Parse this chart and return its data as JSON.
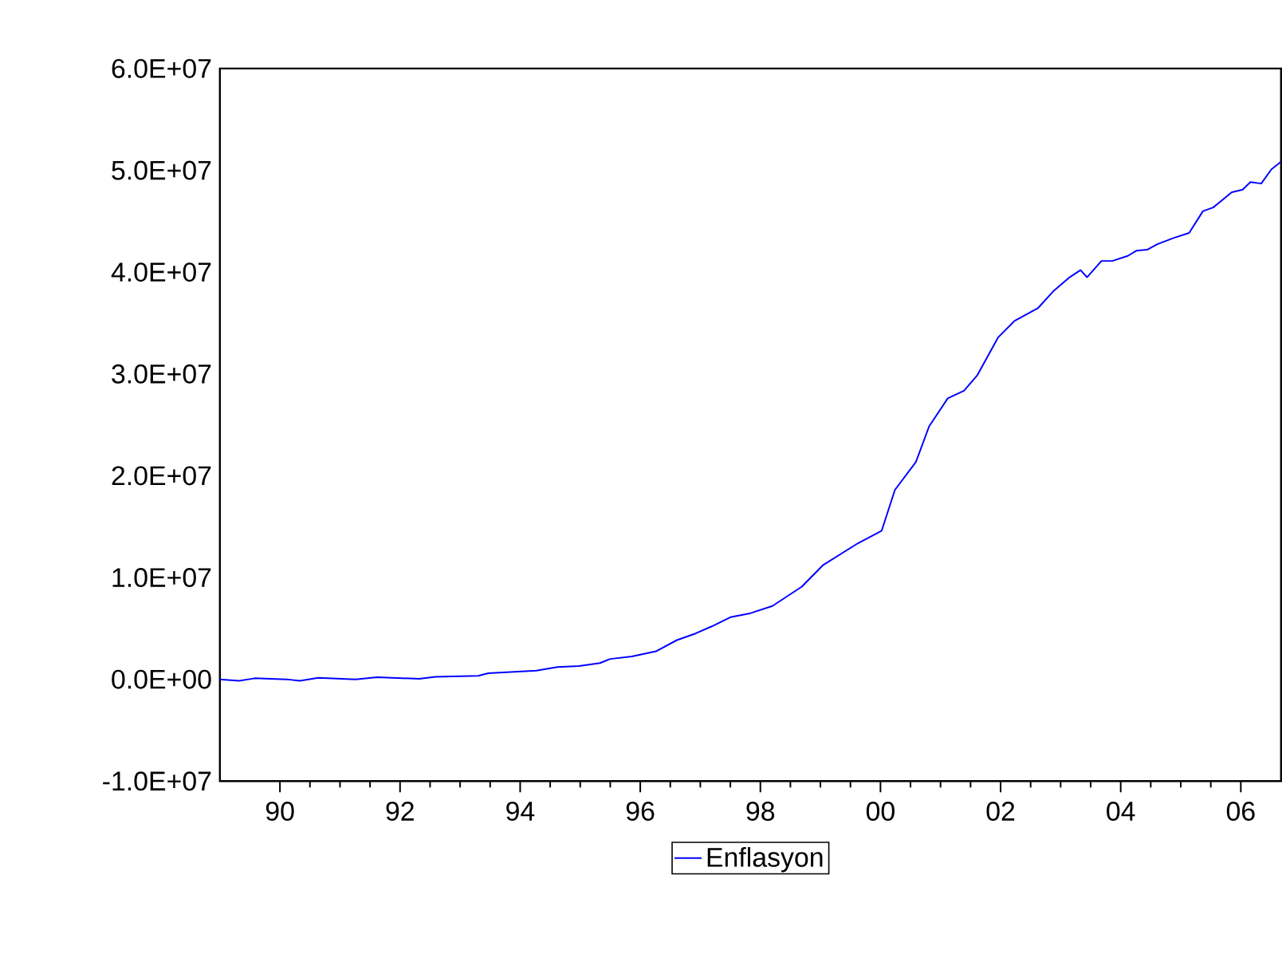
{
  "chart_data": {
    "type": "line",
    "xlim": [
      1989,
      2006.67
    ],
    "xticks": [
      {
        "value": 1990,
        "label": "90"
      },
      {
        "value": 1992,
        "label": "92"
      },
      {
        "value": 1994,
        "label": "94"
      },
      {
        "value": 1996,
        "label": "96"
      },
      {
        "value": 1998,
        "label": "98"
      },
      {
        "value": 2000,
        "label": "00"
      },
      {
        "value": 2002,
        "label": "02"
      },
      {
        "value": 2004,
        "label": "04"
      },
      {
        "value": 2006,
        "label": "06"
      }
    ],
    "ylim": [
      -10000000,
      60000000
    ],
    "yticks": [
      {
        "value": -10000000,
        "label": "-1.0E+07"
      },
      {
        "value": 0,
        "label": "0.0E+00"
      },
      {
        "value": 10000000,
        "label": "1.0E+07"
      },
      {
        "value": 20000000,
        "label": "2.0E+07"
      },
      {
        "value": 30000000,
        "label": "3.0E+07"
      },
      {
        "value": 40000000,
        "label": "4.0E+07"
      },
      {
        "value": 50000000,
        "label": "5.0E+07"
      },
      {
        "value": 60000000,
        "label": "6.0E+07"
      }
    ],
    "legend": "bottom",
    "series": [
      {
        "name": "Enflasyon",
        "color": "#0000ff",
        "x": [
          1989.0,
          1989.32,
          1989.58,
          1990.11,
          1990.33,
          1990.64,
          1991.26,
          1991.62,
          1992.32,
          1992.59,
          1993.3,
          1993.47,
          1994.27,
          1994.62,
          1994.98,
          1995.33,
          1995.5,
          1995.86,
          1996.26,
          1996.61,
          1996.92,
          1997.19,
          1997.5,
          1997.81,
          1998.2,
          1998.69,
          1999.04,
          1999.62,
          2000.02,
          2000.24,
          2000.59,
          2000.81,
          2001.12,
          2001.39,
          2001.61,
          2001.96,
          2002.23,
          2002.62,
          2002.89,
          2003.15,
          2003.33,
          2003.44,
          2003.68,
          2003.86,
          2004.12,
          2004.26,
          2004.44,
          2004.61,
          2004.88,
          2005.14,
          2005.37,
          2005.54,
          2005.85,
          2006.03,
          2006.16,
          2006.34,
          2006.51,
          2006.67
        ],
        "values": [
          0,
          -150000,
          100000,
          0,
          -150000,
          150000,
          0,
          200000,
          50000,
          250000,
          350000,
          600000,
          850000,
          1200000,
          1300000,
          1600000,
          2000000,
          2250000,
          2750000,
          3850000,
          4500000,
          5200000,
          6100000,
          6450000,
          7200000,
          9100000,
          11200000,
          13350000,
          14600000,
          18600000,
          21350000,
          24850000,
          27600000,
          28350000,
          29850000,
          33600000,
          35200000,
          36450000,
          38200000,
          39500000,
          40200000,
          39500000,
          41100000,
          41100000,
          41600000,
          42100000,
          42200000,
          42750000,
          43350000,
          43850000,
          46000000,
          46350000,
          47850000,
          48100000,
          48850000,
          48700000,
          50100000,
          50850000
        ]
      }
    ]
  }
}
